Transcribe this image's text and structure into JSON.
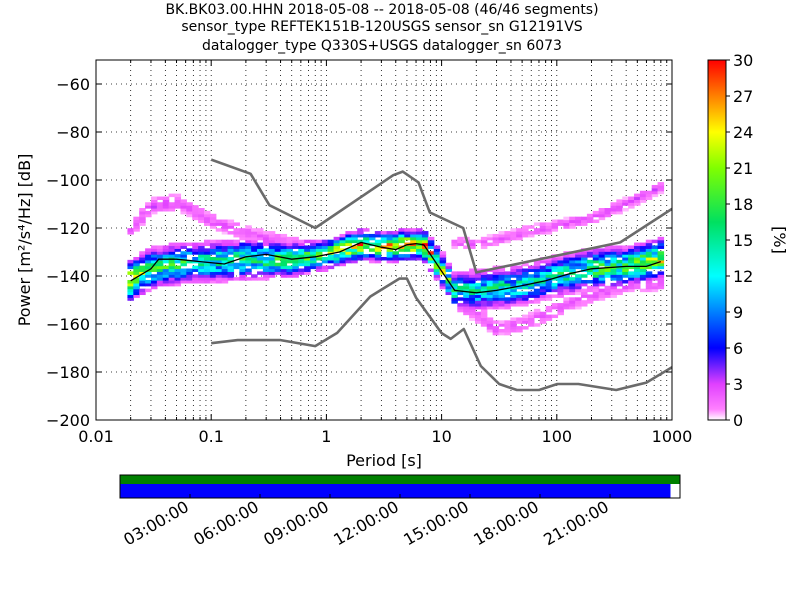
{
  "chart_data": {
    "type": "heatmap",
    "title_lines": [
      "BK.BK03.00.HHN   2018-05-08 -- 2018-05-08  (46/46 segments)",
      "sensor_type REFTEK151B-120USGS sensor_sn G12191VS",
      "datalogger_type Q330S+USGS datalogger_sn 6073"
    ],
    "xlabel": "Period [s]",
    "ylabel": "Power [m²/s⁴/Hz] [dB]",
    "x_scale": "log",
    "xlim": [
      0.01,
      1000
    ],
    "ylim": [
      -200,
      -50
    ],
    "x_ticks": [
      {
        "v": 0.01,
        "label": "0.01"
      },
      {
        "v": 0.1,
        "label": "0.1"
      },
      {
        "v": 1,
        "label": "1"
      },
      {
        "v": 10,
        "label": "10"
      },
      {
        "v": 100,
        "label": "100"
      },
      {
        "v": 1000,
        "label": "1000"
      }
    ],
    "y_ticks": [
      -60,
      -80,
      -100,
      -120,
      -140,
      -160,
      -180,
      -200
    ],
    "colorbar": {
      "label": "[%]",
      "min": 0,
      "max": 30,
      "ticks": [
        0,
        3,
        6,
        9,
        12,
        15,
        18,
        21,
        24,
        27,
        30
      ]
    },
    "noise_models": [
      {
        "name": "high",
        "color": "#6b6b6b",
        "points": [
          [
            0.1,
            -91.5
          ],
          [
            0.22,
            -97.4
          ],
          [
            0.32,
            -110.5
          ],
          [
            0.8,
            -120
          ],
          [
            3.8,
            -98
          ],
          [
            4.6,
            -96.5
          ],
          [
            6.3,
            -101
          ],
          [
            7.9,
            -113.5
          ],
          [
            15.4,
            -120
          ],
          [
            20,
            -138.5
          ],
          [
            354.8,
            -126
          ],
          [
            1000,
            -112
          ]
        ]
      },
      {
        "name": "low",
        "color": "#6b6b6b",
        "points": [
          [
            0.1,
            -168
          ],
          [
            0.17,
            -166.7
          ],
          [
            0.4,
            -166.7
          ],
          [
            0.8,
            -169.2
          ],
          [
            1.24,
            -163.7
          ],
          [
            2.4,
            -148.6
          ],
          [
            4.3,
            -141.1
          ],
          [
            5,
            -141.1
          ],
          [
            6,
            -149
          ],
          [
            10,
            -163.8
          ],
          [
            12,
            -166.2
          ],
          [
            15.6,
            -162.1
          ],
          [
            21.9,
            -177.5
          ],
          [
            31.6,
            -185
          ],
          [
            45,
            -187.5
          ],
          [
            70,
            -187.5
          ],
          [
            101,
            -185
          ],
          [
            154,
            -185
          ],
          [
            328,
            -187.5
          ],
          [
            600,
            -184.4
          ],
          [
            1000,
            -178
          ]
        ]
      }
    ],
    "median_curve": {
      "color": "#000000",
      "points": [
        [
          0.02,
          -142
        ],
        [
          0.03,
          -137
        ],
        [
          0.035,
          -133
        ],
        [
          0.05,
          -133
        ],
        [
          0.08,
          -134
        ],
        [
          0.13,
          -135
        ],
        [
          0.2,
          -132
        ],
        [
          0.3,
          -131
        ],
        [
          0.5,
          -133
        ],
        [
          0.8,
          -132
        ],
        [
          1.3,
          -130
        ],
        [
          2,
          -126
        ],
        [
          3,
          -128
        ],
        [
          4,
          -129
        ],
        [
          5,
          -127
        ],
        [
          6,
          -126.5
        ],
        [
          7,
          -127
        ],
        [
          8,
          -131
        ],
        [
          10,
          -138
        ],
        [
          13,
          -146
        ],
        [
          20,
          -147
        ],
        [
          30,
          -146
        ],
        [
          50,
          -144
        ],
        [
          80,
          -142
        ],
        [
          130,
          -139
        ],
        [
          200,
          -137
        ],
        [
          400,
          -136
        ],
        [
          600,
          -136
        ],
        [
          800,
          -134
        ]
      ]
    },
    "psd_density": {
      "comment_free": true,
      "ridge": [
        [
          0.02,
          -142,
          4,
          22
        ],
        [
          0.03,
          -137,
          4,
          15
        ],
        [
          0.05,
          -135,
          4,
          14
        ],
        [
          0.1,
          -134,
          4,
          13
        ],
        [
          0.2,
          -133,
          4,
          14
        ],
        [
          0.5,
          -133,
          3.5,
          15
        ],
        [
          1,
          -131,
          3,
          17
        ],
        [
          2,
          -127,
          3,
          22
        ],
        [
          3,
          -128,
          3,
          20
        ],
        [
          5,
          -127,
          3,
          22
        ],
        [
          7,
          -127,
          3,
          23
        ],
        [
          10,
          -137,
          3.5,
          18
        ],
        [
          13,
          -146,
          3.5,
          13
        ],
        [
          20,
          -146,
          4,
          12
        ],
        [
          50,
          -144,
          4,
          12
        ],
        [
          100,
          -140,
          4,
          13
        ],
        [
          200,
          -137,
          4,
          15
        ],
        [
          400,
          -136,
          4,
          16
        ],
        [
          800,
          -133,
          4,
          19
        ]
      ],
      "upper_branch": [
        [
          0.02,
          -121,
          2,
          2
        ],
        [
          0.03,
          -111,
          2,
          2.5
        ],
        [
          0.05,
          -109,
          2,
          2.5
        ],
        [
          0.1,
          -117,
          2,
          2
        ],
        [
          0.2,
          -122,
          2,
          2
        ],
        [
          0.5,
          -127,
          2,
          2
        ],
        [
          12,
          -126,
          1.5,
          2
        ],
        [
          20,
          -127,
          1.5,
          2
        ],
        [
          50,
          -122,
          1.5,
          2
        ],
        [
          100,
          -119,
          1.5,
          2
        ],
        [
          200,
          -116,
          1.5,
          2
        ],
        [
          400,
          -110,
          1.5,
          2.5
        ],
        [
          800,
          -103,
          1.5,
          2.5
        ]
      ],
      "lower_branch": [
        [
          13,
          -150,
          2,
          2.5
        ],
        [
          20,
          -156,
          2,
          2
        ],
        [
          30,
          -162,
          2,
          2
        ],
        [
          50,
          -160,
          2,
          2
        ],
        [
          100,
          -154,
          2,
          2
        ],
        [
          200,
          -148,
          2,
          2
        ],
        [
          400,
          -144,
          2,
          2
        ],
        [
          800,
          -143,
          2,
          2
        ]
      ]
    },
    "data_availability": {
      "time_ticks": [
        "03:00:00",
        "06:00:00",
        "09:00:00",
        "12:00:00",
        "15:00:00",
        "18:00:00",
        "21:00:00"
      ],
      "segments_fraction": 1.0,
      "data_fraction": 0.983,
      "segments_color": "#008000",
      "data_color": "#0000ff"
    }
  }
}
